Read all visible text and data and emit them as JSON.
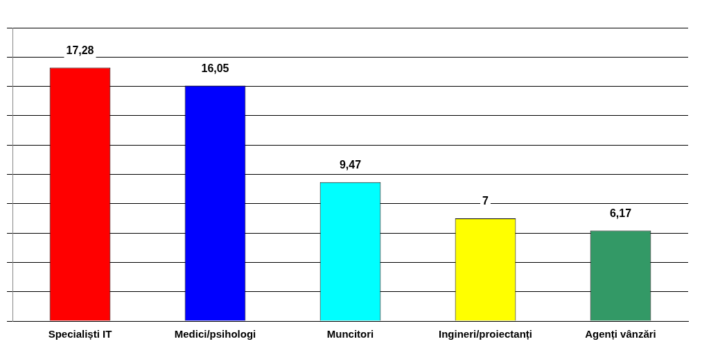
{
  "chart_data": {
    "type": "bar",
    "categories": [
      "Specialiști IT",
      "Medici/psihologi",
      "Muncitori",
      "Ingineri/proiectanți",
      "Agenți vânzări"
    ],
    "values": [
      17.28,
      16.05,
      9.47,
      7,
      6.17
    ],
    "colors": [
      "#ff0000",
      "#0000ff",
      "#00ffff",
      "#ffff00",
      "#339966"
    ],
    "value_labels": [
      "17,28",
      "16,05",
      "9,47",
      "7",
      "6,17"
    ],
    "ylim": [
      0,
      20
    ],
    "yticks": [
      {
        "value": 0,
        "label": null
      },
      {
        "value": 2,
        "label": null
      },
      {
        "value": 4,
        "label": null
      },
      {
        "value": 6,
        "label": null
      },
      {
        "value": 8,
        "label": null
      },
      {
        "value": 10,
        "label": null
      },
      {
        "value": 12,
        "label": null
      },
      {
        "value": 14,
        "label": null
      },
      {
        "value": 16,
        "label": null
      },
      {
        "value": 18,
        "label": null
      },
      {
        "value": 20,
        "label": null
      }
    ],
    "tick_labels": "x",
    "grid": "y",
    "legend": false
  }
}
